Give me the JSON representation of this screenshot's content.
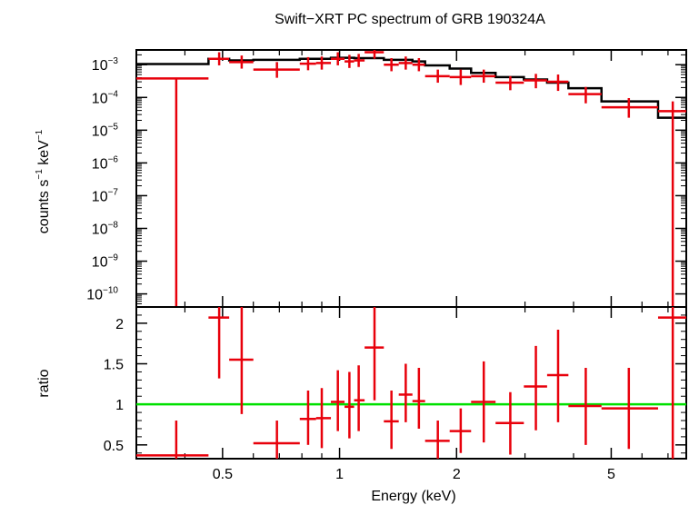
{
  "colors": {
    "data": "#e8000b",
    "model": "#000000",
    "unity": "#00e000",
    "frame": "#000000"
  },
  "chart_data": [
    {
      "type": "scatter",
      "title": "Swift−XRT PC spectrum of GRB 190324A",
      "xlabel": "",
      "ylabel_text": "counts s",
      "ylabel_sup1": "−1",
      "ylabel_mid": " keV",
      "ylabel_sup2": "−1",
      "xscale": "log",
      "yscale": "log",
      "xlim": [
        0.3,
        7.8
      ],
      "ylim_exp": [
        -10.4,
        -2.55
      ],
      "yticks": [
        {
          "exp": -3,
          "label": "10",
          "sup": "−3"
        },
        {
          "exp": -4,
          "label": "10",
          "sup": "−4"
        },
        {
          "exp": -5,
          "label": "10",
          "sup": "−5"
        },
        {
          "exp": -6,
          "label": "10",
          "sup": "−6"
        },
        {
          "exp": -7,
          "label": "10",
          "sup": "−7"
        },
        {
          "exp": -8,
          "label": "10",
          "sup": "−8"
        },
        {
          "exp": -9,
          "label": "10",
          "sup": "−9"
        },
        {
          "exp": -10,
          "label": "10",
          "sup": "−10"
        }
      ],
      "series": [
        {
          "kind": "data",
          "points": [
            {
              "x": 0.38,
              "xlo": 0.3,
              "xhi": 0.46,
              "yexp": -3.42,
              "yexp_lo": -10.4,
              "yexp_hi": -3.42
            },
            {
              "x": 0.49,
              "xlo": 0.46,
              "xhi": 0.52,
              "yexp": -2.82,
              "yexp_lo": -3.02,
              "yexp_hi": -2.62
            },
            {
              "x": 0.56,
              "xlo": 0.52,
              "xhi": 0.6,
              "yexp": -2.92,
              "yexp_lo": -3.12,
              "yexp_hi": -2.72
            },
            {
              "x": 0.69,
              "xlo": 0.6,
              "xhi": 0.79,
              "yexp": -3.15,
              "yexp_lo": -3.4,
              "yexp_hi": -2.92
            },
            {
              "x": 0.83,
              "xlo": 0.79,
              "xhi": 0.87,
              "yexp": -2.97,
              "yexp_lo": -3.17,
              "yexp_hi": -2.77
            },
            {
              "x": 0.9,
              "xlo": 0.87,
              "xhi": 0.95,
              "yexp": -2.95,
              "yexp_lo": -3.15,
              "yexp_hi": -2.75
            },
            {
              "x": 0.99,
              "xlo": 0.95,
              "xhi": 1.03,
              "yexp": -2.82,
              "yexp_lo": -3.02,
              "yexp_hi": -2.62
            },
            {
              "x": 1.06,
              "xlo": 1.03,
              "xhi": 1.09,
              "yexp": -2.9,
              "yexp_lo": -3.1,
              "yexp_hi": -2.7
            },
            {
              "x": 1.12,
              "xlo": 1.09,
              "xhi": 1.16,
              "yexp": -2.87,
              "yexp_lo": -3.07,
              "yexp_hi": -2.67
            },
            {
              "x": 1.23,
              "xlo": 1.16,
              "xhi": 1.3,
              "yexp": -2.62,
              "yexp_lo": -2.82,
              "yexp_hi": -2.55
            },
            {
              "x": 1.36,
              "xlo": 1.3,
              "xhi": 1.42,
              "yexp": -3.0,
              "yexp_lo": -3.2,
              "yexp_hi": -2.8
            },
            {
              "x": 1.48,
              "xlo": 1.42,
              "xhi": 1.54,
              "yexp": -2.95,
              "yexp_lo": -3.15,
              "yexp_hi": -2.75
            },
            {
              "x": 1.6,
              "xlo": 1.54,
              "xhi": 1.66,
              "yexp": -3.0,
              "yexp_lo": -3.2,
              "yexp_hi": -2.8
            },
            {
              "x": 1.79,
              "xlo": 1.66,
              "xhi": 1.92,
              "yexp": -3.35,
              "yexp_lo": -3.55,
              "yexp_hi": -3.15
            },
            {
              "x": 2.05,
              "xlo": 1.92,
              "xhi": 2.18,
              "yexp": -3.38,
              "yexp_lo": -3.62,
              "yexp_hi": -3.15
            },
            {
              "x": 2.35,
              "xlo": 2.18,
              "xhi": 2.52,
              "yexp": -3.35,
              "yexp_lo": -3.55,
              "yexp_hi": -3.15
            },
            {
              "x": 2.75,
              "xlo": 2.52,
              "xhi": 2.98,
              "yexp": -3.55,
              "yexp_lo": -3.78,
              "yexp_hi": -3.35
            },
            {
              "x": 3.2,
              "xlo": 2.98,
              "xhi": 3.42,
              "yexp": -3.48,
              "yexp_lo": -3.72,
              "yexp_hi": -3.28
            },
            {
              "x": 3.65,
              "xlo": 3.42,
              "xhi": 3.88,
              "yexp": -3.52,
              "yexp_lo": -3.8,
              "yexp_hi": -3.3
            },
            {
              "x": 4.3,
              "xlo": 3.88,
              "xhi": 4.72,
              "yexp": -3.9,
              "yexp_lo": -4.18,
              "yexp_hi": -3.68
            },
            {
              "x": 5.55,
              "xlo": 4.72,
              "xhi": 6.6,
              "yexp": -4.3,
              "yexp_lo": -4.62,
              "yexp_hi": -4.02
            },
            {
              "x": 7.2,
              "xlo": 6.6,
              "xhi": 7.8,
              "yexp": -4.42,
              "yexp_lo": -10.4,
              "yexp_hi": -4.12
            }
          ]
        },
        {
          "kind": "model",
          "steps": [
            {
              "x0": 0.3,
              "x1": 0.46,
              "yexp": -2.98
            },
            {
              "x0": 0.46,
              "x1": 0.52,
              "yexp": -2.82
            },
            {
              "x0": 0.52,
              "x1": 0.6,
              "yexp": -2.87
            },
            {
              "x0": 0.6,
              "x1": 0.79,
              "yexp": -2.85
            },
            {
              "x0": 0.79,
              "x1": 0.95,
              "yexp": -2.82
            },
            {
              "x0": 0.95,
              "x1": 1.09,
              "yexp": -2.79
            },
            {
              "x0": 1.09,
              "x1": 1.3,
              "yexp": -2.8
            },
            {
              "x0": 1.3,
              "x1": 1.54,
              "yexp": -2.85
            },
            {
              "x0": 1.54,
              "x1": 1.66,
              "yexp": -2.9
            },
            {
              "x0": 1.66,
              "x1": 1.92,
              "yexp": -3.02
            },
            {
              "x0": 1.92,
              "x1": 2.18,
              "yexp": -3.12
            },
            {
              "x0": 2.18,
              "x1": 2.52,
              "yexp": -3.25
            },
            {
              "x0": 2.52,
              "x1": 2.98,
              "yexp": -3.38
            },
            {
              "x0": 2.98,
              "x1": 3.42,
              "yexp": -3.45
            },
            {
              "x0": 3.42,
              "x1": 3.88,
              "yexp": -3.55
            },
            {
              "x0": 3.88,
              "x1": 4.72,
              "yexp": -3.72
            },
            {
              "x0": 4.72,
              "x1": 6.6,
              "yexp": -4.12
            },
            {
              "x0": 6.6,
              "x1": 7.8,
              "yexp": -4.62
            }
          ]
        }
      ]
    },
    {
      "type": "scatter",
      "xlabel": "Energy (keV)",
      "ylabel": "ratio",
      "xscale": "log",
      "yscale": "linear",
      "xlim": [
        0.3,
        7.8
      ],
      "ylim": [
        0.33,
        2.2
      ],
      "yticks": [
        {
          "v": 0.5,
          "label": "0.5"
        },
        {
          "v": 1,
          "label": "1"
        },
        {
          "v": 1.5,
          "label": "1.5"
        },
        {
          "v": 2,
          "label": "2"
        }
      ],
      "xticks": [
        {
          "v": 0.5,
          "label": "0.5"
        },
        {
          "v": 1,
          "label": "1"
        },
        {
          "v": 2,
          "label": "2"
        },
        {
          "v": 5,
          "label": "5"
        }
      ],
      "reference_line": 1,
      "series": [
        {
          "kind": "ratio",
          "points": [
            {
              "x": 0.38,
              "xlo": 0.3,
              "xhi": 0.46,
              "y": 0.37,
              "ylo": 0.33,
              "yhi": 0.8
            },
            {
              "x": 0.49,
              "xlo": 0.46,
              "xhi": 0.52,
              "y": 2.07,
              "ylo": 1.32,
              "yhi": 2.2
            },
            {
              "x": 0.56,
              "xlo": 0.52,
              "xhi": 0.6,
              "y": 1.55,
              "ylo": 0.88,
              "yhi": 2.2
            },
            {
              "x": 0.69,
              "xlo": 0.6,
              "xhi": 0.79,
              "y": 0.52,
              "ylo": 0.33,
              "yhi": 0.8
            },
            {
              "x": 0.83,
              "xlo": 0.79,
              "xhi": 0.87,
              "y": 0.82,
              "ylo": 0.5,
              "yhi": 1.17
            },
            {
              "x": 0.9,
              "xlo": 0.87,
              "xhi": 0.95,
              "y": 0.83,
              "ylo": 0.46,
              "yhi": 1.2
            },
            {
              "x": 0.99,
              "xlo": 0.95,
              "xhi": 1.03,
              "y": 1.03,
              "ylo": 0.67,
              "yhi": 1.42
            },
            {
              "x": 1.06,
              "xlo": 1.03,
              "xhi": 1.09,
              "y": 0.97,
              "ylo": 0.58,
              "yhi": 1.4
            },
            {
              "x": 1.12,
              "xlo": 1.09,
              "xhi": 1.16,
              "y": 1.05,
              "ylo": 0.67,
              "yhi": 1.48
            },
            {
              "x": 1.23,
              "xlo": 1.16,
              "xhi": 1.3,
              "y": 1.7,
              "ylo": 1.05,
              "yhi": 2.2
            },
            {
              "x": 1.36,
              "xlo": 1.3,
              "xhi": 1.42,
              "y": 0.79,
              "ylo": 0.45,
              "yhi": 1.17
            },
            {
              "x": 1.48,
              "xlo": 1.42,
              "xhi": 1.54,
              "y": 1.12,
              "ylo": 0.78,
              "yhi": 1.5
            },
            {
              "x": 1.6,
              "xlo": 1.54,
              "xhi": 1.66,
              "y": 1.04,
              "ylo": 0.7,
              "yhi": 1.45
            },
            {
              "x": 1.79,
              "xlo": 1.66,
              "xhi": 1.92,
              "y": 0.55,
              "ylo": 0.33,
              "yhi": 0.8
            },
            {
              "x": 2.05,
              "xlo": 1.92,
              "xhi": 2.18,
              "y": 0.67,
              "ylo": 0.4,
              "yhi": 0.95
            },
            {
              "x": 2.35,
              "xlo": 2.18,
              "xhi": 2.52,
              "y": 1.03,
              "ylo": 0.53,
              "yhi": 1.53
            },
            {
              "x": 2.75,
              "xlo": 2.52,
              "xhi": 2.98,
              "y": 0.77,
              "ylo": 0.38,
              "yhi": 1.15
            },
            {
              "x": 3.2,
              "xlo": 2.98,
              "xhi": 3.42,
              "y": 1.22,
              "ylo": 0.68,
              "yhi": 1.72
            },
            {
              "x": 3.65,
              "xlo": 3.42,
              "xhi": 3.88,
              "y": 1.36,
              "ylo": 0.78,
              "yhi": 1.92
            },
            {
              "x": 4.3,
              "xlo": 3.88,
              "xhi": 4.72,
              "y": 0.98,
              "ylo": 0.5,
              "yhi": 1.45
            },
            {
              "x": 5.55,
              "xlo": 4.72,
              "xhi": 6.6,
              "y": 0.95,
              "ylo": 0.45,
              "yhi": 1.45
            },
            {
              "x": 7.2,
              "xlo": 6.6,
              "xhi": 7.8,
              "y": 2.07,
              "ylo": 0.33,
              "yhi": 2.2
            }
          ]
        }
      ]
    }
  ]
}
